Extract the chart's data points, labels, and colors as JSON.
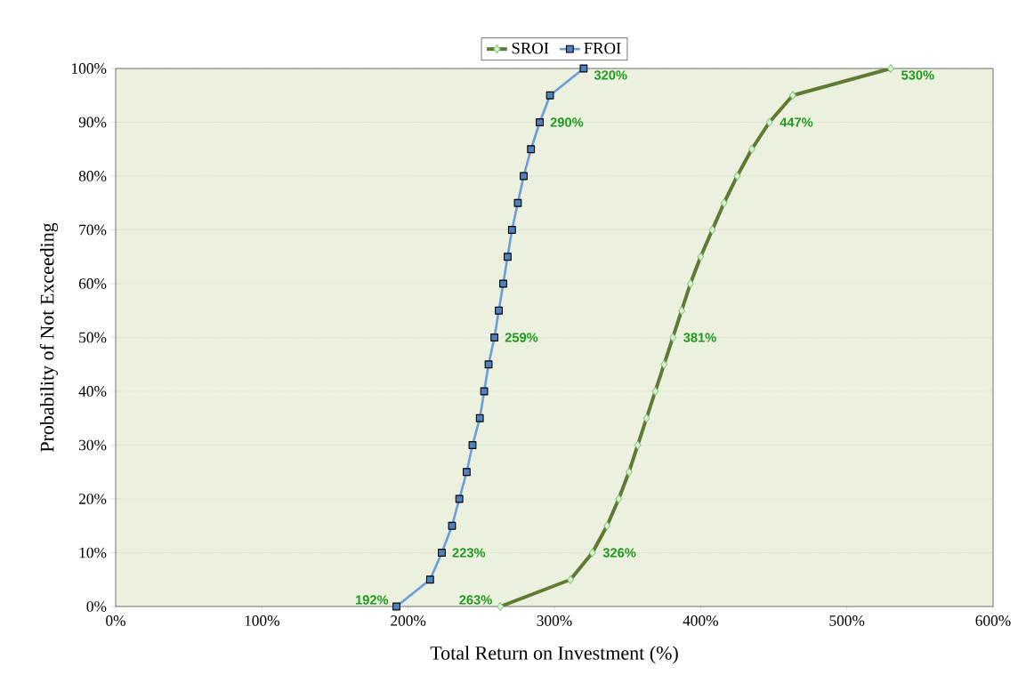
{
  "chart_data": {
    "type": "line",
    "xlabel": "Total Return on Investment (%)",
    "ylabel": "Probability of Not Exceeding",
    "xlim": [
      0,
      600
    ],
    "ylim": [
      0,
      100
    ],
    "xticks": [
      {
        "value": 0,
        "label": "0%"
      },
      {
        "value": 100,
        "label": "100%"
      },
      {
        "value": 200,
        "label": "200%"
      },
      {
        "value": 300,
        "label": "300%"
      },
      {
        "value": 400,
        "label": "400%"
      },
      {
        "value": 500,
        "label": "500%"
      },
      {
        "value": 600,
        "label": "600%"
      }
    ],
    "yticks": [
      {
        "value": 0,
        "label": "0%"
      },
      {
        "value": 10,
        "label": "10%"
      },
      {
        "value": 20,
        "label": "20%"
      },
      {
        "value": 30,
        "label": "30%"
      },
      {
        "value": 40,
        "label": "40%"
      },
      {
        "value": 50,
        "label": "50%"
      },
      {
        "value": 60,
        "label": "60%"
      },
      {
        "value": 70,
        "label": "70%"
      },
      {
        "value": 80,
        "label": "80%"
      },
      {
        "value": 90,
        "label": "90%"
      },
      {
        "value": 100,
        "label": "100%"
      }
    ],
    "grid": "y",
    "legend": "top",
    "series": [
      {
        "name": "SROI",
        "color": "#5f7a32",
        "marker": "diamond",
        "x": [
          263,
          311,
          326,
          336,
          344,
          351,
          357,
          363,
          369,
          375,
          381,
          387,
          393,
          400,
          408,
          416,
          425,
          435,
          447,
          463,
          530
        ],
        "values": [
          0,
          5,
          10,
          15,
          20,
          25,
          30,
          35,
          40,
          45,
          50,
          55,
          60,
          65,
          70,
          75,
          80,
          85,
          90,
          95,
          100
        ]
      },
      {
        "name": "FROI",
        "color": "#6a9fd8",
        "marker": "square",
        "x": [
          192,
          215,
          223,
          230,
          235,
          240,
          244,
          249,
          252,
          255,
          259,
          262,
          265,
          268,
          271,
          275,
          279,
          284,
          290,
          297,
          320
        ],
        "values": [
          0,
          5,
          10,
          15,
          20,
          25,
          30,
          35,
          40,
          45,
          50,
          55,
          60,
          65,
          70,
          75,
          80,
          85,
          90,
          95,
          100
        ]
      }
    ],
    "annotations": [
      {
        "text": "263%",
        "x": 263,
        "y": 0
      },
      {
        "text": "326%",
        "x": 326,
        "y": 10
      },
      {
        "text": "381%",
        "x": 381,
        "y": 50
      },
      {
        "text": "447%",
        "x": 447,
        "y": 90
      },
      {
        "text": "530%",
        "x": 530,
        "y": 100
      },
      {
        "text": "192%",
        "x": 192,
        "y": 0
      },
      {
        "text": "223%",
        "x": 223,
        "y": 10
      },
      {
        "text": "259%",
        "x": 259,
        "y": 50
      },
      {
        "text": "290%",
        "x": 290,
        "y": 90
      },
      {
        "text": "320%",
        "x": 320,
        "y": 100
      }
    ]
  }
}
